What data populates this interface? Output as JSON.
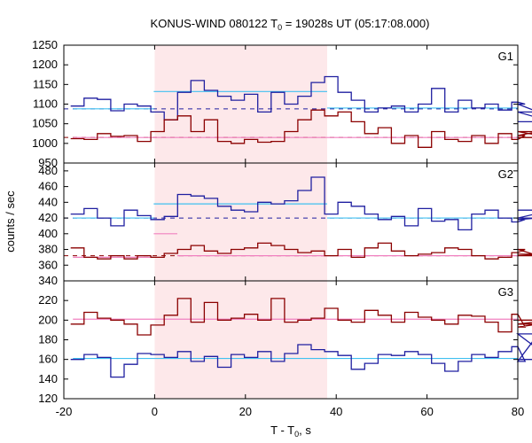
{
  "chart_data": {
    "type": "line",
    "title": "KONUS-WIND 080122 T",
    "title_sub": "0",
    "title_rest": " = 19028s UT (05:17:08.000)",
    "ylabel": "counts / sec",
    "xlabel_main": "T - T",
    "xlabel_sub": "0",
    "xlabel_rest": ", s",
    "xlim": [
      -20,
      80
    ],
    "xticks": [
      -20,
      0,
      20,
      40,
      60,
      80
    ],
    "shaded_interval": [
      0,
      38
    ],
    "shade_color": "#fde8ea",
    "step": 2.944,
    "panels": [
      {
        "label": "G1",
        "ylim": [
          950,
          1250
        ],
        "yticks": [
          950,
          1000,
          1050,
          1100,
          1150,
          1200,
          1250
        ],
        "series": [
          {
            "color": "#1f1fa0",
            "values": [
              1095,
              1115,
              1112,
              1083,
              1100,
              1095,
              1080,
              1060,
              1130,
              1160,
              1135,
              1120,
              1110,
              1125,
              1080,
              1130,
              1100,
              1120,
              1155,
              1170,
              1130,
              1110,
              1080,
              1090,
              1095,
              1080,
              1100,
              1140,
              1080,
              1110,
              1090,
              1100,
              1085,
              1105,
              1100,
              1080,
              1055
            ]
          },
          {
            "color": "#8b0000",
            "values": [
              1012,
              1010,
              1025,
              1018,
              1020,
              1005,
              1030,
              1060,
              1070,
              1030,
              1060,
              1005,
              1000,
              1010,
              1003,
              1005,
              1030,
              1060,
              1085,
              1070,
              1080,
              1055,
              1025,
              1040,
              1000,
              1020,
              990,
              1030,
              1010,
              1005,
              1020,
              1000,
              1025,
              1010,
              1020,
              1030,
              1015
            ]
          }
        ],
        "fits": [
          {
            "color": "#40c0f0",
            "segments": [
              [
                -18,
                1088,
                -0.2,
                1088
              ],
              [
                -0.2,
                1132,
                38,
                1132
              ],
              [
                38,
                1090,
                80,
                1090
              ]
            ]
          },
          {
            "color": "#f080c0",
            "segments": [
              [
                -18,
                1015,
                38,
                1015
              ],
              [
                38,
                1015,
                80,
                1015
              ]
            ]
          }
        ],
        "background": [
          {
            "color": "#1f1fa0",
            "y": 1088
          },
          {
            "color": "#8b0000",
            "y": 1015
          }
        ]
      },
      {
        "label": "G2",
        "ylim": [
          340,
          490
        ],
        "yticks": [
          340,
          360,
          380,
          400,
          420,
          440,
          460,
          480
        ],
        "series": [
          {
            "color": "#1f1fa0",
            "values": [
              425,
              432,
              420,
              410,
              430,
              423,
              418,
              422,
              450,
              448,
              445,
              435,
              430,
              428,
              440,
              438,
              442,
              455,
              472,
              425,
              440,
              435,
              425,
              418,
              422,
              410,
              432,
              416,
              418,
              405,
              425,
              430,
              420,
              415,
              418,
              420,
              430
            ]
          },
          {
            "color": "#8b0000",
            "values": [
              382,
              370,
              368,
              372,
              368,
              372,
              370,
              375,
              380,
              385,
              378,
              375,
              380,
              382,
              388,
              385,
              380,
              376,
              378,
              372,
              380,
              370,
              382,
              388,
              378,
              372,
              374,
              376,
              382,
              380,
              372,
              368,
              370,
              376,
              380,
              372,
              374
            ]
          }
        ],
        "fits": [
          {
            "color": "#40c0f0",
            "segments": [
              [
                -18,
                420,
                -0.2,
                420
              ],
              [
                -0.2,
                438,
                38,
                438
              ],
              [
                38,
                420,
                80,
                420
              ]
            ]
          },
          {
            "color": "#f080c0",
            "segments": [
              [
                -18,
                370,
                -0.2,
                370
              ],
              [
                -0.2,
                400,
                5,
                400
              ],
              [
                5,
                372,
                38,
                372
              ],
              [
                38,
                372,
                80,
                372
              ]
            ]
          }
        ],
        "background": [
          {
            "color": "#1f1fa0",
            "y": 420
          },
          {
            "color": "#8b0000",
            "y": 372
          }
        ]
      },
      {
        "label": "G3",
        "ylim": [
          120,
          240
        ],
        "yticks": [
          120,
          140,
          160,
          180,
          200,
          220
        ],
        "series": [
          {
            "color": "#1f1fa0",
            "values": [
              160,
              165,
              162,
              142,
              155,
              166,
              165,
              162,
              168,
              158,
              163,
              152,
              165,
              162,
              168,
              158,
              166,
              175,
              170,
              168,
              164,
              150,
              156,
              165,
              164,
              168,
              165,
              156,
              148,
              158,
              165,
              162,
              168,
              173,
              158,
              186,
              160
            ]
          },
          {
            "color": "#8b0000",
            "values": [
              196,
              208,
              202,
              200,
              196,
              185,
              195,
              205,
              222,
              198,
              218,
              200,
              202,
              206,
              200,
              222,
              198,
              200,
              202,
              212,
              200,
              198,
              210,
              205,
              198,
              208,
              203,
              200,
              196,
              205,
              204,
              198,
              188,
              206,
              193,
              196,
              200
            ]
          }
        ],
        "fits": [
          {
            "color": "#40c0f0",
            "segments": [
              [
                -18,
                161,
                80,
                161
              ]
            ]
          },
          {
            "color": "#f080c0",
            "segments": [
              [
                -18,
                201,
                80,
                201
              ]
            ]
          }
        ],
        "background": []
      }
    ]
  }
}
